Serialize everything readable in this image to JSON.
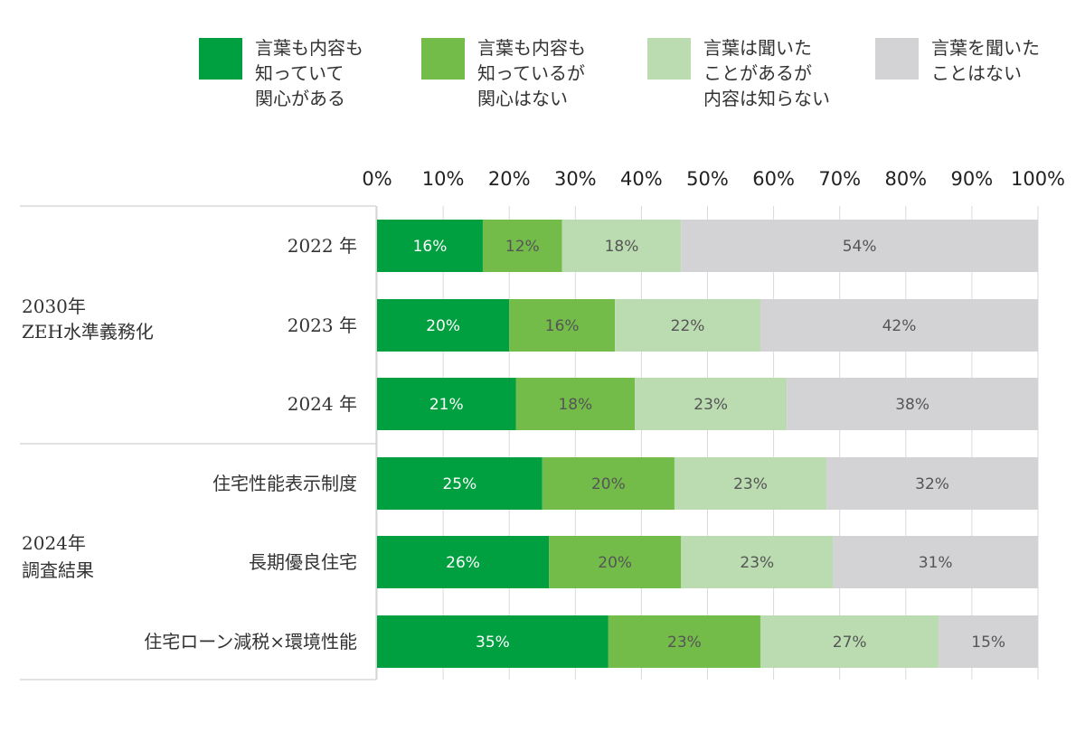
{
  "chart_data": {
    "type": "bar",
    "orientation": "horizontal",
    "stacked": true,
    "xlim": [
      0,
      100
    ],
    "x_ticks": [
      "0%",
      "10%",
      "20%",
      "30%",
      "40%",
      "50%",
      "60%",
      "70%",
      "80%",
      "90%",
      "100%"
    ],
    "grid": true,
    "legend_position": "top",
    "categories": [
      "2022 年",
      "2023 年",
      "2024 年",
      "住宅性能表示制度",
      "長期優良住宅",
      "住宅ローン減税×環境性能"
    ],
    "groups": [
      {
        "label_lines": [
          "2030年",
          "ZEH水準義務化"
        ],
        "category_indices": [
          0,
          1,
          2
        ]
      },
      {
        "label_lines": [
          "2024年",
          "調査結果"
        ],
        "category_indices": [
          3,
          4,
          5
        ]
      }
    ],
    "series": [
      {
        "name": "言葉も内容も知っていて関心がある",
        "legend_lines": [
          "言葉も内容も",
          "知っていて",
          "関心がある"
        ],
        "color": "#00a040",
        "label_color": "#ffffff",
        "values": [
          16,
          20,
          21,
          25,
          26,
          35
        ]
      },
      {
        "name": "言葉も内容も知っているが関心はない",
        "legend_lines": [
          "言葉も内容も",
          "知っているが",
          "関心はない"
        ],
        "color": "#74bc4a",
        "label_color": "#555555",
        "values": [
          12,
          16,
          18,
          20,
          20,
          23
        ]
      },
      {
        "name": "言葉は聞いたことがあるが内容は知らない",
        "legend_lines": [
          "言葉は聞いた",
          "ことがあるが",
          "内容は知らない"
        ],
        "color": "#badcb0",
        "label_color": "#555555",
        "values": [
          18,
          22,
          23,
          23,
          23,
          27
        ]
      },
      {
        "name": "言葉を聞いたことはない",
        "legend_lines": [
          "言葉を聞いた",
          "ことはない"
        ],
        "color": "#d3d3d5",
        "label_color": "#555555",
        "values": [
          54,
          42,
          38,
          32,
          31,
          15
        ]
      }
    ]
  }
}
